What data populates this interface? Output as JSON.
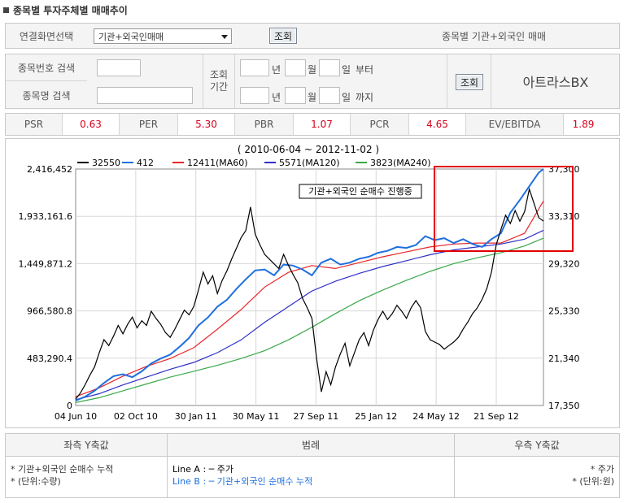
{
  "header": {
    "title": "종목별 투자주체별 매매추이"
  },
  "link_row": {
    "label": "연결화면선택",
    "select_value": "기관+외국인매매",
    "button": "조회",
    "right_text": "종목별 기관+외국인 매매"
  },
  "search": {
    "code_label": "종목번호 검색",
    "name_label": "종목명 검색",
    "period_label": "조회\n기간",
    "from": {
      "year_unit": "년",
      "month_unit": "월",
      "day_unit": "일",
      "suffix": "부터"
    },
    "to": {
      "year_unit": "년",
      "month_unit": "월",
      "day_unit": "일",
      "suffix": "까지"
    },
    "button": "조회",
    "stock_name": "아트라스BX"
  },
  "ratios": [
    {
      "label": "PSR",
      "value": "0.63"
    },
    {
      "label": "PER",
      "value": "5.30"
    },
    {
      "label": "PBR",
      "value": "1.07"
    },
    {
      "label": "PCR",
      "value": "4.65"
    },
    {
      "label": "EV/EBITDA",
      "value": "1.89"
    }
  ],
  "chart_data": {
    "type": "line",
    "title": "( 2010-06-04 ~ 2012-11-02 )",
    "annotation": "기관+외국인 순매수 진행중",
    "x_tick_labels": [
      "04 Jun 10",
      "02 Oct 10",
      "30 Jan 11",
      "30 May 11",
      "27 Sep 11",
      "25 Jan 12",
      "24 May 12",
      "21 Sep 12"
    ],
    "left_axis": {
      "ticks": [
        "2,416,452",
        "1,933,161.6",
        "1,449,871.2",
        "966,580.8",
        "483,290.4",
        "0"
      ],
      "ylim": [
        0,
        2416452
      ]
    },
    "right_axis": {
      "ticks": [
        "37,300",
        "33,310",
        "29,320",
        "25,330",
        "21,340",
        "17,350"
      ],
      "ylim": [
        17350,
        37300
      ]
    },
    "legend": [
      {
        "label": "32550",
        "color": "#000000"
      },
      {
        "label": "412",
        "color": "#1f6fe0"
      },
      {
        "label": "12411(MA60)",
        "color": "#e8262a"
      },
      {
        "label": "5571(MA120)",
        "color": "#2f2fc8"
      },
      {
        "label": "3823(MA240)",
        "color": "#3aa84a"
      }
    ],
    "series": [
      {
        "name": "32550",
        "axis": "right",
        "color": "#000000",
        "values": [
          [
            0,
            17900
          ],
          [
            2,
            18400
          ],
          [
            4,
            19100
          ],
          [
            6,
            19900
          ],
          [
            8,
            20600
          ],
          [
            10,
            21800
          ],
          [
            12,
            22900
          ],
          [
            14,
            22400
          ],
          [
            16,
            23200
          ],
          [
            18,
            24100
          ],
          [
            20,
            23400
          ],
          [
            22,
            24200
          ],
          [
            24,
            24800
          ],
          [
            26,
            23900
          ],
          [
            28,
            24500
          ],
          [
            30,
            24100
          ],
          [
            32,
            25300
          ],
          [
            34,
            24700
          ],
          [
            36,
            24200
          ],
          [
            38,
            23500
          ],
          [
            40,
            23100
          ],
          [
            42,
            23800
          ],
          [
            44,
            24600
          ],
          [
            46,
            25400
          ],
          [
            48,
            25000
          ],
          [
            50,
            25700
          ],
          [
            52,
            27100
          ],
          [
            54,
            28600
          ],
          [
            56,
            27600
          ],
          [
            58,
            28300
          ],
          [
            60,
            26800
          ],
          [
            62,
            27900
          ],
          [
            64,
            28700
          ],
          [
            66,
            29700
          ],
          [
            68,
            30600
          ],
          [
            70,
            31500
          ],
          [
            72,
            32100
          ],
          [
            74,
            34100
          ],
          [
            76,
            31800
          ],
          [
            78,
            30900
          ],
          [
            80,
            30100
          ],
          [
            82,
            29700
          ],
          [
            84,
            29300
          ],
          [
            86,
            28900
          ],
          [
            88,
            30100
          ],
          [
            90,
            29200
          ],
          [
            92,
            28400
          ],
          [
            94,
            27700
          ],
          [
            96,
            26400
          ],
          [
            98,
            25600
          ],
          [
            100,
            24700
          ],
          [
            102,
            21300
          ],
          [
            104,
            18500
          ],
          [
            106,
            20200
          ],
          [
            108,
            19100
          ],
          [
            110,
            20600
          ],
          [
            112,
            21700
          ],
          [
            114,
            22600
          ],
          [
            116,
            20700
          ],
          [
            118,
            21800
          ],
          [
            120,
            22900
          ],
          [
            122,
            23500
          ],
          [
            124,
            22400
          ],
          [
            126,
            23700
          ],
          [
            128,
            24600
          ],
          [
            130,
            25300
          ],
          [
            132,
            24600
          ],
          [
            134,
            25100
          ],
          [
            136,
            25800
          ],
          [
            138,
            25300
          ],
          [
            140,
            24700
          ],
          [
            142,
            25600
          ],
          [
            144,
            26200
          ],
          [
            146,
            25600
          ],
          [
            148,
            23600
          ],
          [
            150,
            22900
          ],
          [
            152,
            22700
          ],
          [
            154,
            22500
          ],
          [
            156,
            22100
          ],
          [
            158,
            22400
          ],
          [
            160,
            22700
          ],
          [
            162,
            23100
          ],
          [
            164,
            23800
          ],
          [
            166,
            24400
          ],
          [
            168,
            25100
          ],
          [
            170,
            25600
          ],
          [
            172,
            26300
          ],
          [
            174,
            27200
          ],
          [
            176,
            28600
          ],
          [
            178,
            30900
          ],
          [
            180,
            32200
          ],
          [
            182,
            33400
          ],
          [
            184,
            32700
          ],
          [
            186,
            33800
          ],
          [
            188,
            32900
          ],
          [
            190,
            33700
          ],
          [
            192,
            35600
          ],
          [
            194,
            34400
          ],
          [
            196,
            33200
          ],
          [
            198,
            32900
          ]
        ]
      },
      {
        "name": "412",
        "axis": "left",
        "color": "#1f6fe0",
        "values": [
          [
            0,
            50000
          ],
          [
            4,
            90000
          ],
          [
            8,
            150000
          ],
          [
            12,
            230000
          ],
          [
            16,
            300000
          ],
          [
            20,
            320000
          ],
          [
            24,
            290000
          ],
          [
            28,
            350000
          ],
          [
            32,
            430000
          ],
          [
            36,
            480000
          ],
          [
            40,
            520000
          ],
          [
            44,
            600000
          ],
          [
            48,
            690000
          ],
          [
            52,
            820000
          ],
          [
            56,
            900000
          ],
          [
            60,
            1010000
          ],
          [
            64,
            1080000
          ],
          [
            68,
            1190000
          ],
          [
            72,
            1290000
          ],
          [
            76,
            1380000
          ],
          [
            80,
            1390000
          ],
          [
            84,
            1330000
          ],
          [
            88,
            1440000
          ],
          [
            92,
            1430000
          ],
          [
            96,
            1390000
          ],
          [
            100,
            1330000
          ],
          [
            104,
            1460000
          ],
          [
            108,
            1500000
          ],
          [
            112,
            1440000
          ],
          [
            116,
            1460000
          ],
          [
            120,
            1500000
          ],
          [
            124,
            1520000
          ],
          [
            128,
            1560000
          ],
          [
            132,
            1580000
          ],
          [
            136,
            1620000
          ],
          [
            140,
            1610000
          ],
          [
            144,
            1640000
          ],
          [
            148,
            1730000
          ],
          [
            152,
            1690000
          ],
          [
            156,
            1710000
          ],
          [
            160,
            1660000
          ],
          [
            164,
            1700000
          ],
          [
            168,
            1650000
          ],
          [
            172,
            1620000
          ],
          [
            176,
            1700000
          ],
          [
            180,
            1760000
          ],
          [
            184,
            1970000
          ],
          [
            188,
            2100000
          ],
          [
            192,
            2240000
          ],
          [
            196,
            2380000
          ],
          [
            198,
            2416452
          ]
        ]
      },
      {
        "name": "12411(MA60)",
        "axis": "left",
        "color": "#e8262a",
        "values": [
          [
            0,
            90000
          ],
          [
            10,
            180000
          ],
          [
            20,
            300000
          ],
          [
            30,
            400000
          ],
          [
            40,
            480000
          ],
          [
            50,
            590000
          ],
          [
            60,
            780000
          ],
          [
            70,
            980000
          ],
          [
            80,
            1210000
          ],
          [
            90,
            1360000
          ],
          [
            100,
            1430000
          ],
          [
            110,
            1400000
          ],
          [
            120,
            1460000
          ],
          [
            130,
            1520000
          ],
          [
            140,
            1570000
          ],
          [
            150,
            1620000
          ],
          [
            160,
            1650000
          ],
          [
            170,
            1660000
          ],
          [
            180,
            1660000
          ],
          [
            190,
            1760000
          ],
          [
            198,
            2090000
          ]
        ]
      },
      {
        "name": "5571(MA120)",
        "axis": "left",
        "color": "#2f2fc8",
        "values": [
          [
            0,
            60000
          ],
          [
            10,
            120000
          ],
          [
            20,
            210000
          ],
          [
            30,
            290000
          ],
          [
            40,
            370000
          ],
          [
            50,
            440000
          ],
          [
            60,
            540000
          ],
          [
            70,
            670000
          ],
          [
            80,
            850000
          ],
          [
            90,
            1010000
          ],
          [
            100,
            1170000
          ],
          [
            110,
            1270000
          ],
          [
            120,
            1350000
          ],
          [
            130,
            1420000
          ],
          [
            140,
            1480000
          ],
          [
            150,
            1540000
          ],
          [
            160,
            1590000
          ],
          [
            170,
            1620000
          ],
          [
            180,
            1650000
          ],
          [
            190,
            1700000
          ],
          [
            198,
            1790000
          ]
        ]
      },
      {
        "name": "3823(MA240)",
        "axis": "left",
        "color": "#3aa84a",
        "values": [
          [
            0,
            30000
          ],
          [
            10,
            80000
          ],
          [
            20,
            150000
          ],
          [
            30,
            220000
          ],
          [
            40,
            290000
          ],
          [
            50,
            350000
          ],
          [
            60,
            410000
          ],
          [
            70,
            480000
          ],
          [
            80,
            560000
          ],
          [
            90,
            670000
          ],
          [
            100,
            800000
          ],
          [
            110,
            940000
          ],
          [
            120,
            1070000
          ],
          [
            130,
            1180000
          ],
          [
            140,
            1280000
          ],
          [
            150,
            1370000
          ],
          [
            160,
            1450000
          ],
          [
            170,
            1510000
          ],
          [
            180,
            1560000
          ],
          [
            190,
            1630000
          ],
          [
            198,
            1710000
          ]
        ]
      }
    ]
  },
  "bottom": {
    "left_head": "좌측 Y축값",
    "left_lines": [
      "* 기관+외국인 순매수 누적",
      "* (단위:수량)"
    ],
    "mid_head": "범례",
    "line_a": "Line A : ─ 주가",
    "line_b": "Line B : ─ 기관+외국인 순매수 누적",
    "line_b_color": "#1f6fe0",
    "right_head": "우측 Y축값",
    "right_lines": [
      "* 주가",
      "* (단위:원)"
    ]
  }
}
